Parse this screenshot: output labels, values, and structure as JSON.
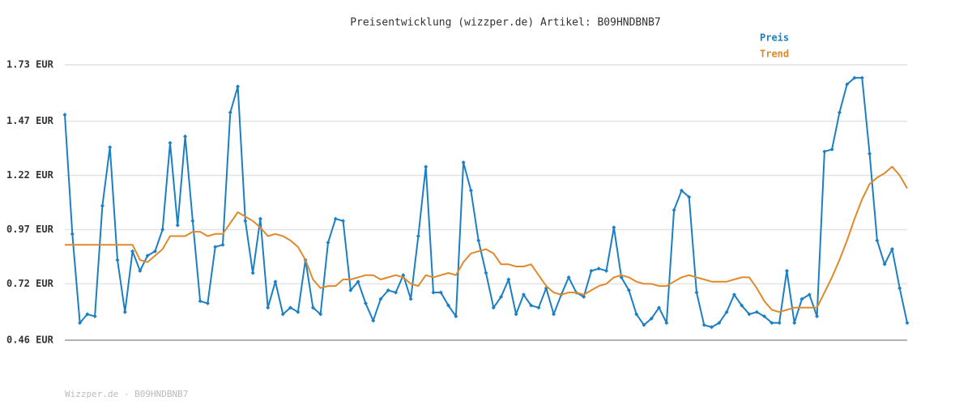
{
  "chart_data": {
    "type": "line",
    "title": "Preisentwicklung (wizzper.de) Artikel: B09HNDBNB7",
    "footer": "Wizzper.de - B09HNDBNB7",
    "ylim": [
      0.46,
      1.73
    ],
    "yticks": [
      {
        "value": 0.46,
        "label": "0.46 EUR"
      },
      {
        "value": 0.72,
        "label": "0.72 EUR"
      },
      {
        "value": 0.97,
        "label": "0.97 EUR"
      },
      {
        "value": 1.22,
        "label": "1.22 EUR"
      },
      {
        "value": 1.47,
        "label": "1.47 EUR"
      },
      {
        "value": 1.73,
        "label": "1.73 EUR"
      }
    ],
    "grid": true,
    "legend": "top-right",
    "series": [
      {
        "name": "Preis",
        "color": "#1b7fc4",
        "markers": true,
        "values": [
          1.5,
          0.95,
          0.54,
          0.58,
          0.57,
          1.08,
          1.35,
          0.83,
          0.59,
          0.87,
          0.78,
          0.85,
          0.87,
          0.97,
          1.37,
          0.99,
          1.4,
          1.01,
          0.64,
          0.63,
          0.89,
          0.9,
          1.51,
          1.63,
          1.01,
          0.77,
          1.02,
          0.61,
          0.73,
          0.58,
          0.61,
          0.59,
          0.83,
          0.61,
          0.58,
          0.91,
          1.02,
          1.01,
          0.69,
          0.73,
          0.63,
          0.55,
          0.65,
          0.69,
          0.68,
          0.76,
          0.65,
          0.94,
          1.26,
          0.68,
          0.68,
          0.62,
          0.57,
          1.28,
          1.15,
          0.92,
          0.77,
          0.61,
          0.66,
          0.74,
          0.58,
          0.67,
          0.62,
          0.61,
          0.7,
          0.58,
          0.67,
          0.75,
          0.68,
          0.66,
          0.78,
          0.79,
          0.78,
          0.98,
          0.75,
          0.69,
          0.58,
          0.53,
          0.56,
          0.61,
          0.54,
          1.06,
          1.15,
          1.12,
          0.68,
          0.53,
          0.52,
          0.54,
          0.59,
          0.67,
          0.62,
          0.58,
          0.59,
          0.57,
          0.54,
          0.54,
          0.78,
          0.54,
          0.65,
          0.67,
          0.57,
          1.33,
          1.34,
          1.51,
          1.64,
          1.67,
          1.67,
          1.32,
          0.92,
          0.81,
          0.88,
          0.7,
          0.54
        ]
      },
      {
        "name": "Trend",
        "color": "#e0892a",
        "markers": false,
        "values": [
          0.9,
          0.9,
          0.9,
          0.9,
          0.9,
          0.9,
          0.9,
          0.9,
          0.9,
          0.9,
          0.83,
          0.82,
          0.85,
          0.88,
          0.94,
          0.94,
          0.94,
          0.96,
          0.96,
          0.94,
          0.95,
          0.95,
          1.0,
          1.05,
          1.03,
          1.01,
          0.98,
          0.94,
          0.95,
          0.94,
          0.92,
          0.89,
          0.83,
          0.74,
          0.7,
          0.71,
          0.71,
          0.74,
          0.74,
          0.75,
          0.76,
          0.76,
          0.74,
          0.75,
          0.76,
          0.75,
          0.72,
          0.71,
          0.76,
          0.75,
          0.76,
          0.77,
          0.76,
          0.82,
          0.86,
          0.87,
          0.88,
          0.86,
          0.81,
          0.81,
          0.8,
          0.8,
          0.81,
          0.76,
          0.71,
          0.68,
          0.67,
          0.68,
          0.68,
          0.67,
          0.69,
          0.71,
          0.72,
          0.75,
          0.76,
          0.75,
          0.73,
          0.72,
          0.72,
          0.71,
          0.71,
          0.73,
          0.75,
          0.76,
          0.75,
          0.74,
          0.73,
          0.73,
          0.73,
          0.74,
          0.75,
          0.75,
          0.7,
          0.64,
          0.6,
          0.59,
          0.6,
          0.61,
          0.61,
          0.61,
          0.61,
          0.68,
          0.75,
          0.83,
          0.92,
          1.02,
          1.11,
          1.18,
          1.21,
          1.23,
          1.26,
          1.22,
          1.16
        ]
      }
    ]
  }
}
